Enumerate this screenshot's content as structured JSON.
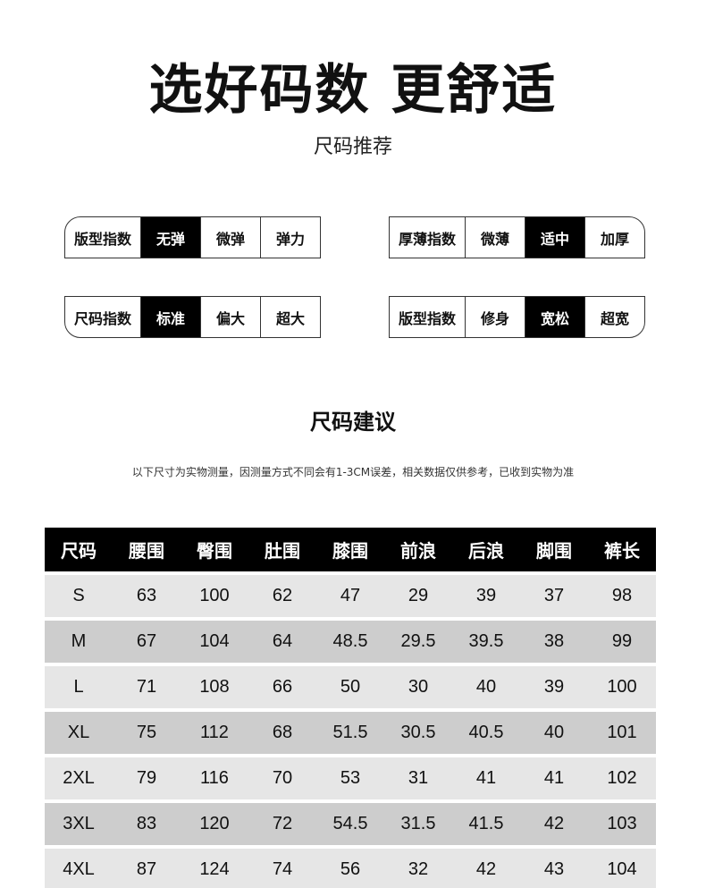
{
  "title": "选好码数 更舒适",
  "subtitle": "尺码推荐",
  "indices": [
    {
      "label": "版型指数",
      "options": [
        "无弹",
        "微弹",
        "弹力"
      ],
      "selected": 0
    },
    {
      "label": "厚薄指数",
      "options": [
        "微薄",
        "适中",
        "加厚"
      ],
      "selected": 1
    },
    {
      "label": "尺码指数",
      "options": [
        "标准",
        "偏大",
        "超大"
      ],
      "selected": 0
    },
    {
      "label": "版型指数",
      "options": [
        "修身",
        "宽松",
        "超宽"
      ],
      "selected": 1
    }
  ],
  "section_title": "尺码建议",
  "note": "以下尺寸为实物测量，因测量方式不同会有1-3CM误差，相关数据仅供参考，已收到实物为准",
  "table": {
    "headers": [
      "尺码",
      "腰围",
      "臀围",
      "肚围",
      "膝围",
      "前浪",
      "后浪",
      "脚围",
      "裤长"
    ],
    "rows": [
      [
        "S",
        "63",
        "100",
        "62",
        "47",
        "29",
        "39",
        "37",
        "98"
      ],
      [
        "M",
        "67",
        "104",
        "64",
        "48.5",
        "29.5",
        "39.5",
        "38",
        "99"
      ],
      [
        "L",
        "71",
        "108",
        "66",
        "50",
        "30",
        "40",
        "39",
        "100"
      ],
      [
        "XL",
        "75",
        "112",
        "68",
        "51.5",
        "30.5",
        "40.5",
        "40",
        "101"
      ],
      [
        "2XL",
        "79",
        "116",
        "70",
        "53",
        "31",
        "41",
        "41",
        "102"
      ],
      [
        "3XL",
        "83",
        "120",
        "72",
        "54.5",
        "31.5",
        "41.5",
        "42",
        "103"
      ],
      [
        "4XL",
        "87",
        "124",
        "74",
        "56",
        "32",
        "42",
        "43",
        "104"
      ]
    ]
  }
}
